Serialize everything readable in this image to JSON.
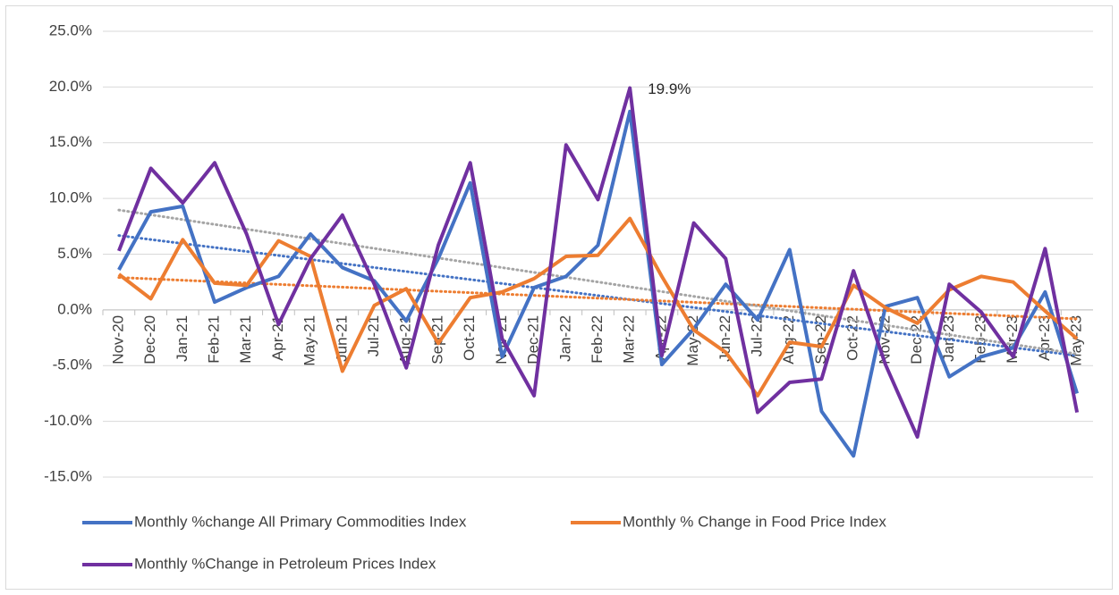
{
  "chart_data": {
    "type": "line",
    "annotation": "19.9%",
    "categories": [
      "Nov-20",
      "Dec-20",
      "Jan-21",
      "Feb-21",
      "Mar-21",
      "Apr-21",
      "May-21",
      "Jun-21",
      "Jul-21",
      "Aug-21",
      "Sep-21",
      "Oct-21",
      "Nov-21",
      "Dec-21",
      "Jan-22",
      "Feb-22",
      "Mar-22",
      "Apr-22",
      "May-22",
      "Jun-22",
      "Jul-22",
      "Aug-22",
      "Sep-22",
      "Oct-22",
      "Nov-22",
      "Dec-22",
      "Jan-23",
      "Feb-23",
      "Mar-23",
      "Apr-23",
      "May-23"
    ],
    "series": [
      {
        "name": "Monthly %change All Primary Commodities Index",
        "color": "#4472c4",
        "trendline_color": "#4472c4",
        "values": [
          3.6,
          8.8,
          9.3,
          0.7,
          2.0,
          3.0,
          6.8,
          3.8,
          2.6,
          -1.0,
          4.6,
          11.4,
          -4.2,
          2.0,
          3.0,
          5.8,
          17.8,
          -4.9,
          -1.7,
          2.3,
          -0.9,
          5.4,
          -9.1,
          -13.1,
          0.3,
          1.1,
          -6.0,
          -4.2,
          -3.4,
          1.6,
          -7.5
        ]
      },
      {
        "name": "Monthly % Change in Food Price Index",
        "color": "#ed7d31",
        "trendline_color": "#ed7d31",
        "values": [
          3.2,
          1.0,
          6.3,
          2.4,
          2.2,
          6.2,
          4.8,
          -5.5,
          0.4,
          1.9,
          -3.0,
          1.1,
          1.6,
          2.8,
          4.8,
          4.9,
          8.2,
          3.0,
          -1.8,
          -3.8,
          -7.7,
          -2.9,
          -3.3,
          2.2,
          0.2,
          -1.2,
          1.8,
          3.0,
          2.5,
          -0.1,
          -2.6
        ]
      },
      {
        "name": "Monthly %Change in Petroleum Prices Index",
        "color": "#7030a0",
        "trendline_color": "#a5a5a5",
        "values": [
          5.3,
          12.7,
          9.6,
          13.2,
          6.8,
          -1.3,
          4.6,
          8.5,
          2.3,
          -5.2,
          5.8,
          13.2,
          -2.6,
          -7.7,
          14.8,
          9.9,
          19.9,
          -4.1,
          7.8,
          4.6,
          -9.2,
          -6.5,
          -6.2,
          3.5,
          -4.9,
          -11.4,
          2.3,
          -0.2,
          -4.2,
          5.5,
          -9.2
        ]
      }
    ],
    "ylim": [
      -15,
      25
    ],
    "yticks": [
      {
        "value": -15,
        "label": "-15.0%"
      },
      {
        "value": -10,
        "label": "-10.0%"
      },
      {
        "value": -5,
        "label": "-5.0%"
      },
      {
        "value": 0,
        "label": "0.0%"
      },
      {
        "value": 5,
        "label": "5.0%"
      },
      {
        "value": 10,
        "label": "10.0%"
      },
      {
        "value": 15,
        "label": "15.0%"
      },
      {
        "value": 20,
        "label": "20.0%"
      },
      {
        "value": 25,
        "label": "25.0%"
      }
    ],
    "grid": true
  }
}
